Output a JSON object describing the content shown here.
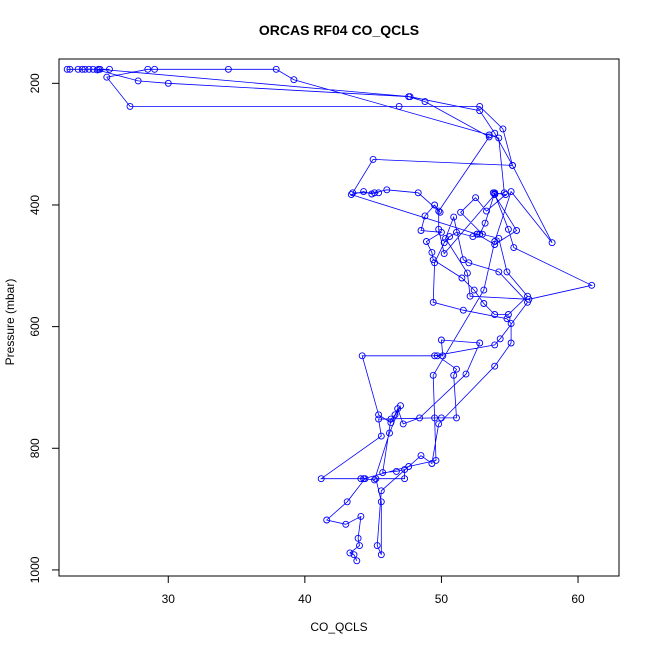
{
  "chart_data": {
    "type": "line",
    "title": "ORCAS RF04 CO_QCLS",
    "xlabel": "CO_QCLS",
    "ylabel": "Pressure (mbar)",
    "xlim": [
      22,
      63
    ],
    "ylim": [
      1010,
      160
    ],
    "y_reversed": true,
    "xticks": [
      30,
      40,
      50,
      60
    ],
    "yticks": [
      200,
      400,
      600,
      800,
      1000
    ],
    "grid": false,
    "legend": "none",
    "series_color": "#0000ff",
    "marker": "open-circle",
    "series": [
      {
        "values": [
          [
            43.8,
            985
          ],
          [
            43.6,
            975
          ],
          [
            43.3,
            972
          ],
          [
            44.0,
            960
          ],
          [
            43.9,
            948
          ],
          [
            44.1,
            912
          ],
          [
            43.0,
            925
          ],
          [
            41.6,
            918
          ],
          [
            43.1,
            888
          ],
          [
            44.4,
            850
          ],
          [
            44.1,
            850
          ],
          [
            41.2,
            850
          ],
          [
            45.6,
            780
          ],
          [
            45.4,
            752
          ],
          [
            49.5,
            750
          ],
          [
            50.0,
            750
          ],
          [
            51.1,
            750
          ],
          [
            50.9,
            680
          ],
          [
            51.1,
            670
          ],
          [
            49.7,
            648
          ],
          [
            50.1,
            648
          ],
          [
            50.0,
            622
          ],
          [
            52.8,
            627
          ],
          [
            51.8,
            678
          ],
          [
            48.4,
            750
          ],
          [
            47.2,
            760
          ],
          [
            46.8,
            735
          ],
          [
            46.6,
            745
          ],
          [
            46.3,
            752
          ],
          [
            45.7,
            840
          ],
          [
            46.7,
            838
          ],
          [
            47.3,
            835
          ],
          [
            47.3,
            850
          ],
          [
            45.2,
            850
          ],
          [
            45.6,
            888
          ],
          [
            45.6,
            975
          ],
          [
            45.3,
            960
          ],
          [
            45.6,
            870
          ],
          [
            48.5,
            812
          ],
          [
            49.3,
            825
          ],
          [
            49.8,
            760
          ],
          [
            53.9,
            665
          ],
          [
            55.1,
            627
          ],
          [
            55.1,
            595
          ],
          [
            54.8,
            587
          ],
          [
            51.6,
            573
          ],
          [
            49.4,
            560
          ],
          [
            49.5,
            495
          ],
          [
            50.2,
            462
          ],
          [
            50.6,
            452
          ],
          [
            51.1,
            445
          ],
          [
            52.3,
            452
          ],
          [
            52.6,
            448
          ],
          [
            52.8,
            448
          ],
          [
            53.2,
            430
          ],
          [
            53.9,
            380
          ],
          [
            54.7,
            383
          ],
          [
            53.3,
            410
          ],
          [
            52.5,
            388
          ],
          [
            51.4,
            412
          ],
          [
            53.0,
            448
          ],
          [
            54.2,
            455
          ],
          [
            54.8,
            510
          ],
          [
            56.3,
            550
          ],
          [
            54.9,
            580
          ],
          [
            53.9,
            580
          ],
          [
            53.1,
            562
          ],
          [
            52.4,
            540
          ],
          [
            51.5,
            520
          ],
          [
            49.4,
            490
          ],
          [
            49.3,
            478
          ],
          [
            48.9,
            460
          ],
          [
            50.0,
            445
          ],
          [
            48.5,
            442
          ],
          [
            48.8,
            418
          ],
          [
            49.5,
            400
          ],
          [
            49.9,
            412
          ],
          [
            48.3,
            380
          ],
          [
            46.0,
            375
          ],
          [
            45.1,
            380
          ],
          [
            44.9,
            382
          ],
          [
            44.3,
            378
          ],
          [
            43.4,
            383
          ],
          [
            52.6,
            448
          ],
          [
            53.9,
            465
          ],
          [
            55.5,
            442
          ],
          [
            53.8,
            380
          ],
          [
            53.9,
            382
          ],
          [
            54.9,
            440
          ],
          [
            55.3,
            470
          ],
          [
            61.0,
            532
          ],
          [
            56.4,
            555
          ],
          [
            52.1,
            550
          ],
          [
            51.9,
            512
          ],
          [
            50.3,
            455
          ],
          [
            50.9,
            420
          ],
          [
            51.6,
            490
          ],
          [
            52.0,
            495
          ],
          [
            54.2,
            510
          ],
          [
            56.3,
            560
          ],
          [
            54.3,
            620
          ],
          [
            53.9,
            630
          ],
          [
            49.5,
            648
          ],
          [
            44.2,
            648
          ],
          [
            45.4,
            745
          ],
          [
            46.3,
            758
          ],
          [
            47.0,
            730
          ],
          [
            46.2,
            775
          ],
          [
            45.1,
            852
          ],
          [
            44.3,
            850
          ],
          [
            47.6,
            830
          ],
          [
            49.6,
            820
          ],
          [
            49.4,
            680
          ],
          [
            53.1,
            540
          ],
          [
            53.9,
            460
          ],
          [
            55.1,
            378
          ],
          [
            58.1,
            462
          ],
          [
            55.2,
            335
          ],
          [
            54.5,
            275
          ],
          [
            52.8,
            238
          ],
          [
            46.9,
            238
          ],
          [
            27.2,
            238
          ],
          [
            25.5,
            190
          ],
          [
            28.5,
            177
          ],
          [
            29.0,
            177
          ],
          [
            34.4,
            177
          ],
          [
            37.9,
            177
          ],
          [
            39.2,
            194
          ],
          [
            53.5,
            285
          ],
          [
            54.2,
            290
          ],
          [
            54.6,
            380
          ],
          [
            53.9,
            383
          ],
          [
            50.2,
            480
          ],
          [
            49.8,
            440
          ],
          [
            49.8,
            410
          ],
          [
            53.5,
            288
          ],
          [
            48.8,
            230
          ],
          [
            47.6,
            222
          ],
          [
            30.0,
            200
          ],
          [
            27.8,
            196
          ],
          [
            24.8,
            178
          ],
          [
            25.7,
            177
          ],
          [
            22.6,
            177
          ],
          [
            23.4,
            177
          ],
          [
            22.8,
            177
          ],
          [
            24.2,
            177
          ],
          [
            24.5,
            177
          ],
          [
            23.7,
            177
          ],
          [
            23.9,
            177
          ],
          [
            24.9,
            177
          ],
          [
            25.0,
            177
          ],
          [
            47.7,
            222
          ],
          [
            52.8,
            245
          ],
          [
            53.9,
            282
          ],
          [
            55.2,
            335
          ],
          [
            45.0,
            325
          ],
          [
            43.5,
            380
          ],
          [
            45.4,
            380
          ]
        ]
      }
    ]
  }
}
